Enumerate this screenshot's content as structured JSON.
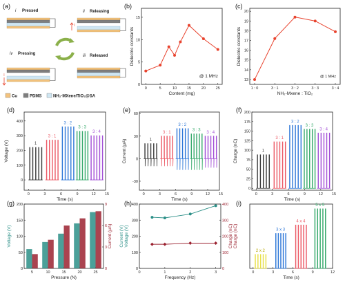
{
  "colors": {
    "red": "#e8432e",
    "gray": "#3a3a3a",
    "pink": "#ec5a66",
    "blue": "#2f78d8",
    "green": "#36a96b",
    "purple": "#a24fd6",
    "teal": "#2b8f87",
    "darkred": "#9b2230",
    "yellow": "#e8e04a",
    "cu": "#f3c27d",
    "pdms": "#7e7e7e",
    "mxene": "#cfe6f2"
  },
  "panel_a": {
    "label": "(a)",
    "states": {
      "i": {
        "num": "i",
        "name": "Pressed"
      },
      "ii": {
        "num": "ii",
        "name": "Releasing"
      },
      "iii": {
        "num": "iii",
        "name": "Released"
      },
      "iv": {
        "num": "iv",
        "name": "Pressing"
      }
    },
    "legend": [
      {
        "label": "Cu",
        "color": "#f3c27d"
      },
      {
        "label": "PDMS",
        "color": "#7e7e7e"
      },
      {
        "label": "NH₂-MXene/TiO₂@SA",
        "color": "#cfe6f2"
      }
    ],
    "current_symbol": "I"
  },
  "chart_data": [
    {
      "panel": "(b)",
      "type": "line",
      "x": [
        0,
        5,
        8,
        10,
        12,
        15,
        20,
        25
      ],
      "y": [
        3.0,
        4.3,
        8.4,
        6.5,
        9.5,
        13.2,
        10.2,
        7.8
      ],
      "xlabel": "Content (mg)",
      "ylabel": "Dielectric constants",
      "xticks": [
        0,
        5,
        10,
        15,
        20,
        25
      ],
      "yticks": [
        0,
        5,
        10,
        15
      ],
      "xlim": [
        -1.5,
        26.5
      ],
      "ylim": [
        0,
        17
      ],
      "annotation": "@ 1 MHz"
    },
    {
      "panel": "(c)",
      "type": "line",
      "categories": [
        "1 : 0",
        "3 : 1",
        "3 : 2",
        "3 : 3",
        "3 : 4"
      ],
      "values": [
        13.0,
        17.2,
        19.4,
        19.0,
        17.9
      ],
      "xlabel": "NH₂-Mxene : TiO₂",
      "ylabel": "Dielectric constants",
      "yticks": [
        13,
        14,
        15,
        16,
        17,
        18,
        19,
        20
      ],
      "ylim": [
        12.5,
        20.3
      ],
      "annotation": "@ 1 MHz"
    },
    {
      "panel": "(d)",
      "type": "line",
      "xlabel": "Time (s)",
      "ylabel": "Voltage (V)",
      "xticks": [
        0,
        3,
        6,
        9,
        12,
        15
      ],
      "yticks": [
        0,
        100,
        200,
        300,
        400
      ],
      "xlim": [
        -0.8,
        14.2
      ],
      "ylim": [
        -70,
        460
      ],
      "series": [
        {
          "name": "1",
          "color": "gray",
          "peak": 220,
          "trough": 0,
          "start": 0.2,
          "end": 2.4
        },
        {
          "name": "3 : 1",
          "color": "pink",
          "peak": 270,
          "trough": 0,
          "start": 3.3,
          "end": 5.4
        },
        {
          "name": "3 : 2",
          "color": "blue",
          "peak": 360,
          "trough": 0,
          "start": 6.2,
          "end": 8.3
        },
        {
          "name": "3 : 3",
          "color": "green",
          "peak": 330,
          "trough": 0,
          "start": 8.9,
          "end": 10.9
        },
        {
          "name": "3 : 4",
          "color": "purple",
          "peak": 300,
          "trough": 0,
          "start": 11.5,
          "end": 13.6
        }
      ]
    },
    {
      "panel": "(e)",
      "type": "line",
      "xlabel": "Time (s)",
      "ylabel": "Current (μA)",
      "xticks": [
        0,
        3,
        6,
        9,
        12,
        15
      ],
      "yticks": [
        -30,
        0,
        30,
        60
      ],
      "xlim": [
        -0.8,
        14.2
      ],
      "ylim": [
        -42,
        62
      ],
      "series": [
        {
          "name": "1",
          "color": "gray",
          "peak": 20,
          "trough": -10,
          "start": 0.2,
          "end": 2.4
        },
        {
          "name": "3 : 1",
          "color": "pink",
          "peak": 30,
          "trough": -10,
          "start": 3.3,
          "end": 5.4
        },
        {
          "name": "3 : 2",
          "color": "blue",
          "peak": 40,
          "trough": -15,
          "start": 6.2,
          "end": 8.3
        },
        {
          "name": "3 : 3",
          "color": "green",
          "peak": 33,
          "trough": -15,
          "start": 8.9,
          "end": 10.9
        },
        {
          "name": "3 : 4",
          "color": "purple",
          "peak": 30,
          "trough": -12,
          "start": 11.5,
          "end": 13.6
        }
      ]
    },
    {
      "panel": "(f)",
      "type": "line",
      "xlabel": "Time (s)",
      "ylabel": "Charge (nC)",
      "xticks": [
        0,
        3,
        6,
        9,
        12,
        15
      ],
      "yticks": [
        0,
        25,
        50,
        75,
        100,
        125,
        150,
        175,
        200
      ],
      "xlim": [
        -0.8,
        14.2
      ],
      "ylim": [
        -5,
        200
      ],
      "series": [
        {
          "name": "1",
          "color": "gray",
          "peak": 88,
          "trough": 0,
          "start": 0.2,
          "end": 2.4
        },
        {
          "name": "3 : 1",
          "color": "pink",
          "peak": 122,
          "trough": 0,
          "start": 3.3,
          "end": 5.4
        },
        {
          "name": "3 : 2",
          "color": "blue",
          "peak": 165,
          "trough": 0,
          "start": 6.2,
          "end": 8.3
        },
        {
          "name": "3 : 3",
          "color": "green",
          "peak": 155,
          "trough": 0,
          "start": 8.9,
          "end": 10.9
        },
        {
          "name": "3 : 4",
          "color": "purple",
          "peak": 145,
          "trough": 0,
          "start": 11.5,
          "end": 13.6
        }
      ]
    },
    {
      "panel": "(g)",
      "type": "bar",
      "categories": [
        "5",
        "10",
        "15",
        "20",
        "25"
      ],
      "xlabel": "Pressure (N)",
      "series": [
        {
          "name": "Voltage (V)",
          "axis": "left",
          "color": "teal",
          "values": [
            60,
            82,
            108,
            140,
            175
          ]
        },
        {
          "name": "Current (μA)",
          "axis": "right",
          "color": "darkred",
          "values": [
            2,
            4,
            6,
            7,
            8
          ]
        }
      ],
      "ylabel_left": "Voltage (V)",
      "ylabel_right": "Current (μA)",
      "yticks_left": [
        0,
        50,
        100,
        150,
        200
      ],
      "yticks_right": [
        0,
        3,
        6,
        9
      ],
      "ylim_left": [
        0,
        200
      ],
      "ylim_right": [
        0,
        9
      ]
    },
    {
      "panel": "(h)",
      "type": "line",
      "x": [
        0.5,
        1,
        2,
        3
      ],
      "xlabel": "Frequency (Hz)",
      "xticks": [
        0,
        1,
        2,
        3
      ],
      "xlim": [
        0,
        3.2
      ],
      "series": [
        {
          "name": "Voltage (V)",
          "axis": "left",
          "color": "teal",
          "marker": "circle",
          "values": [
            318,
            314,
            338,
            390
          ]
        },
        {
          "name": "Charge (nC)",
          "axis": "left",
          "color": "darkred",
          "marker": "diamond",
          "values": [
            150,
            150,
            157,
            157
          ]
        }
      ],
      "ylabel_left": "Current (V)",
      "ylabel_left_sub": "Voltage (V)",
      "ylabel_right": "Charge (nC)",
      "ylabel_right_sub": "Charge (nC)",
      "yticks_left": [
        0,
        100,
        200,
        300,
        400
      ],
      "yticks_right": [
        0,
        100,
        200,
        300,
        400
      ],
      "ylim": [
        0,
        400
      ]
    },
    {
      "panel": "(i)",
      "type": "line",
      "xlabel": "Time (s)",
      "xticks": [
        0,
        3,
        6,
        9,
        12
      ],
      "xlim": [
        -0.5,
        12
      ],
      "ylim": [
        0,
        175
      ],
      "series": [
        {
          "name": "2 x 2",
          "color": "yellow",
          "peak": 38,
          "start": 0.3,
          "end": 1.9
        },
        {
          "name": "3 x 3",
          "color": "blue",
          "peak": 95,
          "start": 3.4,
          "end": 4.9
        },
        {
          "name": "4 x 4",
          "color": "pink",
          "peak": 118,
          "start": 6.4,
          "end": 8.0
        },
        {
          "name": "5 x 5",
          "color": "green",
          "peak": 162,
          "start": 9.3,
          "end": 10.9
        }
      ]
    }
  ]
}
